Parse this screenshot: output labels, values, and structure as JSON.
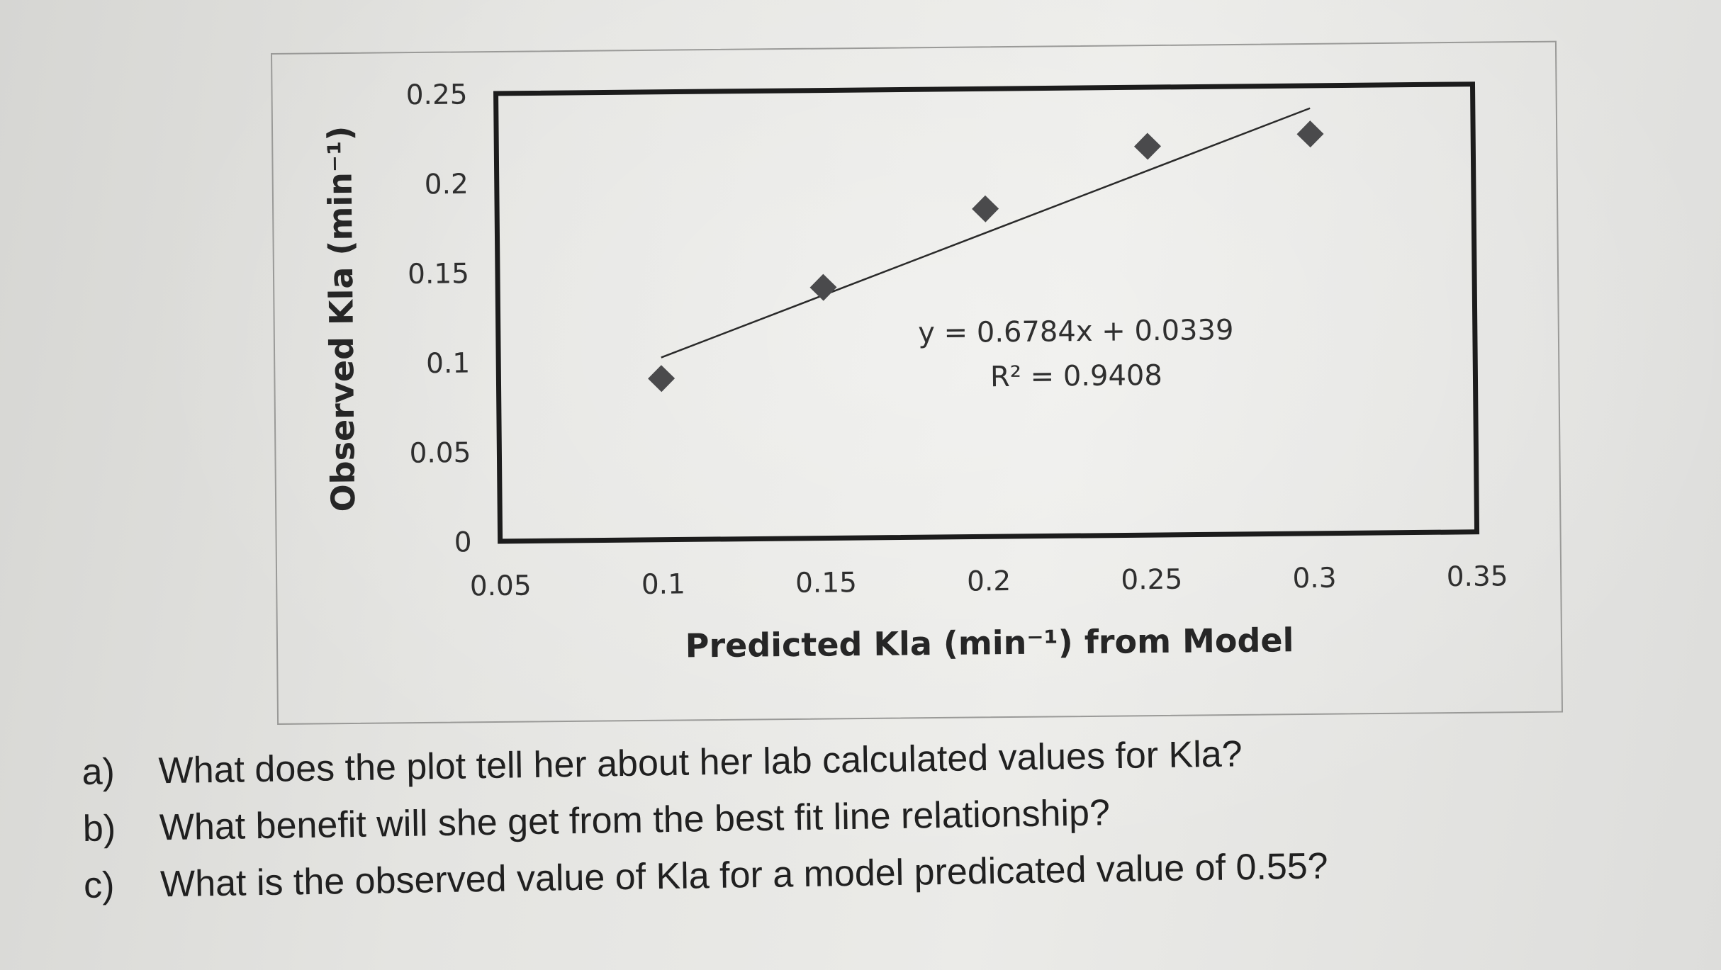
{
  "chart_data": {
    "type": "scatter",
    "series": [
      {
        "x": [
          0.1,
          0.15,
          0.2,
          0.25,
          0.3
        ],
        "y": [
          0.09,
          0.14,
          0.183,
          0.217,
          0.223
        ]
      }
    ],
    "trendline": {
      "slope": 0.6784,
      "intercept": 0.0339,
      "x_range": [
        0.1,
        0.3
      ],
      "equation": "y = 0.6784x + 0.0339",
      "r2_label": "R² = 0.9408"
    },
    "xlabel": "Predicted Kla (min⁻¹) from Model",
    "ylabel": "Observed Kla (min⁻¹)",
    "xlim": [
      0.05,
      0.35
    ],
    "ylim": [
      0,
      0.25
    ],
    "x_ticks": [
      "0.05",
      "0.1",
      "0.15",
      "0.2",
      "0.25",
      "0.3",
      "0.35"
    ],
    "y_ticks": [
      "0",
      "0.05",
      "0.1",
      "0.15",
      "0.2",
      "0.25"
    ],
    "grid": false,
    "marker": "diamond",
    "colors": {
      "marker": "#4a4a4c",
      "line": "#2a2a2a",
      "frame": "#1c1c1c"
    }
  },
  "questions": [
    {
      "marker": "a)",
      "text": "What does the plot tell her about her lab calculated values for Kla?"
    },
    {
      "marker": "b)",
      "text": "What benefit will she get from the best fit line relationship?"
    },
    {
      "marker": "c)",
      "text": "What is the observed value of Kla for a model predicated value of 0.55?"
    }
  ]
}
